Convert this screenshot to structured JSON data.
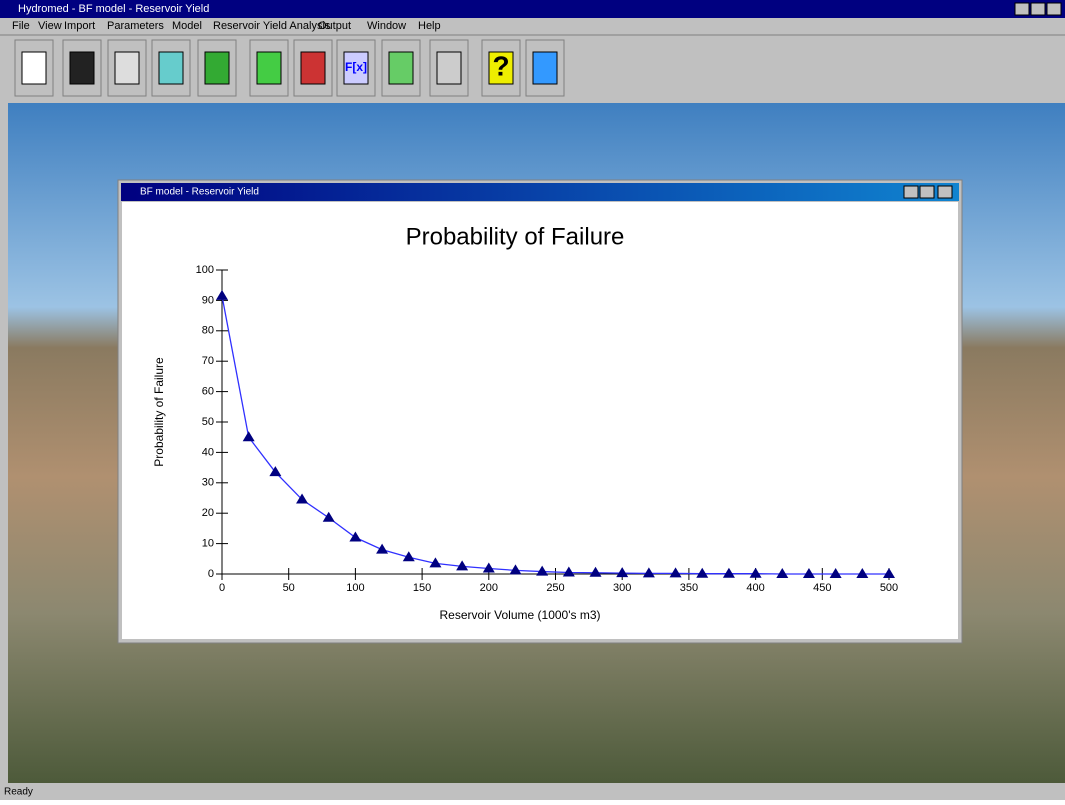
{
  "window": {
    "title": "Hydromed - BF model - Reservoir Yield"
  },
  "menu": [
    "File",
    "View",
    "Import",
    "Parameters",
    "Model",
    "Reservoir Yield Analysis",
    "Output",
    "Window",
    "Help"
  ],
  "toolbar": [
    "F[x]",
    "?"
  ],
  "child_window": {
    "title": "BF model - Reservoir Yield"
  },
  "chart_data": {
    "type": "line",
    "title": "Probability of Failure",
    "x_label": "Reservoir Volume (1000's m3)",
    "y_label": "Probability of Failure",
    "x": [
      0,
      20,
      40,
      60,
      80,
      100,
      120,
      140,
      160,
      180,
      200,
      220,
      240,
      260,
      280,
      300,
      320,
      340,
      360,
      380,
      400,
      420,
      440,
      460,
      480,
      500
    ],
    "series": [
      {
        "name": "Probability of Failure",
        "color": "#3030ff",
        "marker_color": "#000080",
        "values": [
          91.5,
          45,
          33.5,
          24.5,
          18.5,
          12,
          8,
          5.5,
          3.5,
          2.5,
          1.8,
          1.2,
          0.8,
          0.5,
          0.4,
          0.3,
          0.2,
          0.2,
          0.1,
          0.1,
          0.1,
          0,
          0,
          0,
          0,
          0
        ]
      }
    ],
    "xlim": [
      0,
      500
    ],
    "xticks": [
      0,
      50,
      100,
      150,
      200,
      250,
      300,
      350,
      400,
      450,
      500
    ],
    "ylim": [
      0,
      100
    ],
    "yticks": [
      0,
      10,
      20,
      30,
      40,
      50,
      60,
      70,
      80,
      90,
      100
    ]
  },
  "status": "Ready"
}
